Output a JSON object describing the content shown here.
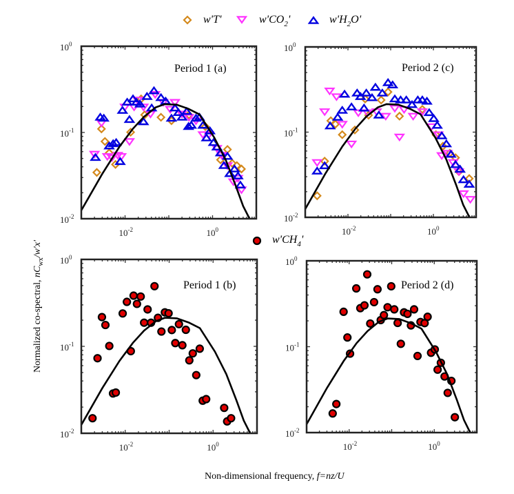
{
  "chart_data": {
    "type": "scatter",
    "xscale": "log",
    "yscale": "log",
    "xlabel": "Non-dimensional frequency, ",
    "xlabel_italic": "f=nz/U",
    "ylabel": "Normalized co-spectral, ",
    "ylabel_italic": "nC",
    "ylabel_sub": "wx",
    "ylabel_tail": "/w'x'",
    "legends": [
      {
        "position": "top-center",
        "entries": [
          {
            "series": "T",
            "label": "w'T'",
            "marker": "diamond",
            "color": "#D4891C"
          },
          {
            "series": "CO2",
            "label": "w'CO",
            "sub": "2",
            "tail": "'",
            "marker": "triangle-down",
            "color": "#FF33FF"
          },
          {
            "series": "H2O",
            "label": "w'H",
            "sub": "2",
            "tail": "O'",
            "marker": "triangle-up",
            "color": "#0000E0"
          }
        ]
      },
      {
        "position": "center",
        "entries": [
          {
            "series": "CH4",
            "label": "w'CH",
            "sub": "4",
            "tail": "'",
            "marker": "circle",
            "color": "#E00000",
            "edge": "#000000"
          }
        ]
      }
    ],
    "reference_curve": {
      "color": "#000000",
      "x": [
        0.001,
        0.003,
        0.0074,
        0.015,
        0.027,
        0.05,
        0.08,
        0.15,
        0.28,
        0.5,
        1.1,
        2.0,
        3.4,
        5.0,
        7.0
      ],
      "y": [
        0.0125,
        0.033,
        0.068,
        0.11,
        0.152,
        0.195,
        0.213,
        0.21,
        0.188,
        0.162,
        0.087,
        0.048,
        0.024,
        0.014,
        0.01
      ]
    },
    "panels": [
      {
        "id": "a",
        "title": "Period 1 (a)",
        "xlim": [
          0.001,
          10
        ],
        "ylim": [
          0.01,
          1
        ],
        "xticks": [
          {
            "value": 0.01,
            "base": "10",
            "exp": "-2"
          },
          {
            "value": 1,
            "base": "10",
            "exp": "0"
          }
        ],
        "yticks": [
          {
            "value": 1,
            "base": "10",
            "exp": "0"
          },
          {
            "value": 0.1,
            "base": "10",
            "exp": "-1"
          },
          {
            "value": 0.01,
            "base": "10",
            "exp": "-2"
          }
        ],
        "series": [
          {
            "name": "H2O",
            "x": [
              0.0021,
              0.00272,
              0.00327,
              0.00434,
              0.00535,
              0.00627,
              0.00773,
              0.00873,
              0.0112,
              0.0126,
              0.0152,
              0.0182,
              0.0219,
              0.0264,
              0.0317,
              0.0406,
              0.0458,
              0.0662,
              0.0847,
              0.115,
              0.138,
              0.166,
              0.2,
              0.256,
              0.282,
              0.327,
              0.418,
              0.502,
              0.604,
              0.726,
              0.873,
              1.05,
              1.26,
              1.52,
              1.82,
              2.19,
              2.48,
              3.17,
              3.81,
              4.32
            ],
            "y": [
              0.0512,
              0.15,
              0.146,
              0.0696,
              0.074,
              0.0763,
              0.0459,
              0.18,
              0.224,
              0.141,
              0.245,
              0.224,
              0.213,
              0.133,
              0.261,
              0.192,
              0.304,
              0.253,
              0.23,
              0.146,
              0.192,
              0.17,
              0.15,
              0.175,
              0.117,
              0.121,
              0.146,
              0.15,
              0.121,
              0.0863,
              0.104,
              0.0763,
              0.0676,
              0.0579,
              0.0413,
              0.0528,
              0.0333,
              0.0377,
              0.0313,
              0.0245
            ]
          },
          {
            "name": "CO2",
            "x": [
              0.002,
              0.00289,
              0.00394,
              0.00502,
              0.00684,
              0.00822,
              0.0099,
              0.0126,
              0.0161,
              0.0194,
              0.0264,
              0.0381,
              0.0488,
              0.075,
              0.108,
              0.138,
              0.2,
              0.289,
              0.418,
              0.604,
              0.822,
              1.26,
              1.61,
              2.19,
              2.99,
              3.81,
              4.58
            ],
            "y": [
              0.0561,
              0.129,
              0.0528,
              0.0512,
              0.0545,
              0.0528,
              0.198,
              0.0787,
              0.198,
              0.238,
              0.198,
              0.164,
              0.277,
              0.224,
              0.186,
              0.224,
              0.164,
              0.15,
              0.137,
              0.0946,
              0.0946,
              0.0655,
              0.0545,
              0.0413,
              0.0269,
              0.0295,
              0.0217
            ]
          },
          {
            "name": "T",
            "x": [
              0.00226,
              0.00289,
              0.00347,
              0.00434,
              0.00604,
              0.0134,
              0.0281,
              0.0233,
              0.0662,
              0.115,
              0.289,
              0.684,
              1.52,
              2.19,
              2.81,
              3.59,
              4.58
            ],
            "y": [
              0.0344,
              0.11,
              0.0787,
              0.0579,
              0.0426,
              0.1007,
              0.16,
              0.245,
              0.15,
              0.137,
              0.16,
              0.117,
              0.0482,
              0.0635,
              0.0439,
              0.0413,
              0.0377
            ]
          }
        ]
      },
      {
        "id": "c",
        "title": "Period 2 (c)",
        "xlim": [
          0.001,
          10
        ],
        "ylim": [
          0.01,
          1
        ],
        "xticks": [
          {
            "value": 0.01,
            "base": "10",
            "exp": "-2"
          },
          {
            "value": 1,
            "base": "10",
            "exp": "0"
          }
        ],
        "yticks": [
          {
            "value": 1,
            "base": "10",
            "exp": "0"
          },
          {
            "value": 0.1,
            "base": "10",
            "exp": "-1"
          },
          {
            "value": 0.01,
            "base": "10",
            "exp": "-2"
          }
        ],
        "series": [
          {
            "name": "H2O",
            "x": [
              0.0019,
              0.00285,
              0.00383,
              0.00575,
              0.00736,
              0.00833,
              0.0121,
              0.0164,
              0.0197,
              0.0238,
              0.0269,
              0.0366,
              0.044,
              0.0529,
              0.0637,
              0.0867,
              0.111,
              0.125,
              0.171,
              0.232,
              0.316,
              0.432,
              0.551,
              0.705,
              0.797,
              1.02,
              1.23,
              1.57,
              2.01,
              2.57,
              3.3,
              4.21,
              5.07,
              6.9
            ],
            "y": [
              0.0348,
              0.0402,
              0.118,
              0.149,
              0.18,
              0.278,
              0.197,
              0.287,
              0.261,
              0.191,
              0.287,
              0.253,
              0.335,
              0.158,
              0.287,
              0.38,
              0.357,
              0.245,
              0.238,
              0.238,
              0.21,
              0.238,
              0.238,
              0.23,
              0.169,
              0.144,
              0.12,
              0.0904,
              0.0727,
              0.0549,
              0.0415,
              0.0366,
              0.0276,
              0.0244
            ]
          },
          {
            "name": "CO2",
            "x": [
              0.0019,
              0.00285,
              0.00373,
              0.0054,
              0.00736,
              0.0121,
              0.0175,
              0.0286,
              0.0469,
              0.0766,
              0.125,
              0.161,
              0.206,
              0.336,
              0.551,
              0.904,
              1.31,
              1.57,
              2.14,
              2.91,
              3.96,
              5.07,
              7.33
            ],
            "y": [
              0.0441,
              0.174,
              0.305,
              0.261,
              0.124,
              0.0728,
              0.169,
              0.169,
              0.174,
              0.154,
              0.191,
              0.0878,
              0.185,
              0.154,
              0.174,
              0.116,
              0.0933,
              0.0532,
              0.0566,
              0.0441,
              0.0344,
              0.019,
              0.0163
            ]
          },
          {
            "name": "T",
            "x": [
              0.0019,
              0.00285,
              0.00397,
              0.00509,
              0.00736,
              0.0145,
              0.0253,
              0.0304,
              0.0598,
              0.0867,
              0.161,
              0.551,
              1.15,
              1.67,
              2.42,
              3.3,
              3.96,
              6.9
            ],
            "y": [
              0.0179,
              0.0456,
              0.136,
              0.124,
              0.0933,
              0.106,
              0.245,
              0.158,
              0.238,
              0.296,
              0.154,
              0.185,
              0.0933,
              0.0683,
              0.0566,
              0.05,
              0.0344,
              0.0285
            ]
          }
        ]
      },
      {
        "id": "b",
        "title": "Period 1 (b)",
        "xlim": [
          0.001,
          10
        ],
        "ylim": [
          0.01,
          1
        ],
        "xticks": [
          {
            "value": 0.01,
            "base": "10",
            "exp": "-2"
          },
          {
            "value": 1,
            "base": "10",
            "exp": "0"
          }
        ],
        "yticks": [
          {
            "value": 1,
            "base": "10",
            "exp": "0"
          },
          {
            "value": 0.1,
            "base": "10",
            "exp": "-1"
          },
          {
            "value": 0.01,
            "base": "10",
            "exp": "-2"
          }
        ],
        "series": [
          {
            "name": "CH4",
            "x": [
              0.0018,
              0.00234,
              0.00295,
              0.00354,
              0.00434,
              0.00527,
              0.0061,
              0.00875,
              0.0109,
              0.0134,
              0.0155,
              0.0185,
              0.0225,
              0.0269,
              0.0323,
              0.0387,
              0.0464,
              0.0556,
              0.0667,
              0.08,
              0.097,
              0.115,
              0.138,
              0.167,
              0.2,
              0.24,
              0.288,
              0.345,
              0.414,
              0.497,
              0.581,
              0.696,
              1.79,
              2.09,
              2.57
            ],
            "y": [
              0.0149,
              0.073,
              0.217,
              0.176,
              0.101,
              0.0287,
              0.0294,
              0.239,
              0.325,
              0.088,
              0.383,
              0.308,
              0.374,
              0.187,
              0.266,
              0.187,
              0.492,
              0.213,
              0.148,
              0.246,
              0.24,
              0.154,
              0.109,
              0.18,
              0.103,
              0.155,
              0.069,
              0.083,
              0.0467,
              0.094,
              0.0237,
              0.0247,
              0.0196,
              0.0137,
              0.0149
            ]
          }
        ]
      },
      {
        "id": "d",
        "title": "Period 2 (d)",
        "xlim": [
          0.001,
          10
        ],
        "ylim": [
          0.01,
          1
        ],
        "xticks": [
          {
            "value": 0.01,
            "base": "10",
            "exp": "-2"
          },
          {
            "value": 1,
            "base": "10",
            "exp": "0"
          }
        ],
        "yticks": [
          {
            "value": 1,
            "base": "10",
            "exp": "0"
          },
          {
            "value": 0.1,
            "base": "10",
            "exp": "-1"
          },
          {
            "value": 0.01,
            "base": "10",
            "exp": "-2"
          }
        ],
        "series": [
          {
            "name": "CH4",
            "x": [
              0.0041,
              0.005,
              0.0074,
              0.0091,
              0.0105,
              0.0147,
              0.0183,
              0.0229,
              0.0266,
              0.0313,
              0.0385,
              0.0464,
              0.0552,
              0.0656,
              0.08,
              0.0975,
              0.115,
              0.138,
              0.164,
              0.195,
              0.235,
              0.283,
              0.336,
              0.405,
              0.475,
              0.594,
              0.698,
              0.841,
              1.03,
              1.2,
              1.43,
              1.75,
              2.07,
              2.53,
              3.05
            ],
            "y": [
              0.0167,
              0.0215,
              0.255,
              0.128,
              0.083,
              0.477,
              0.281,
              0.303,
              0.695,
              0.186,
              0.33,
              0.466,
              0.204,
              0.233,
              0.288,
              0.505,
              0.272,
              0.189,
              0.108,
              0.251,
              0.241,
              0.177,
              0.272,
              0.078,
              0.194,
              0.188,
              0.223,
              0.085,
              0.093,
              0.054,
              0.065,
              0.045,
              0.029,
              0.04,
              0.0151
            ]
          }
        ]
      }
    ]
  }
}
